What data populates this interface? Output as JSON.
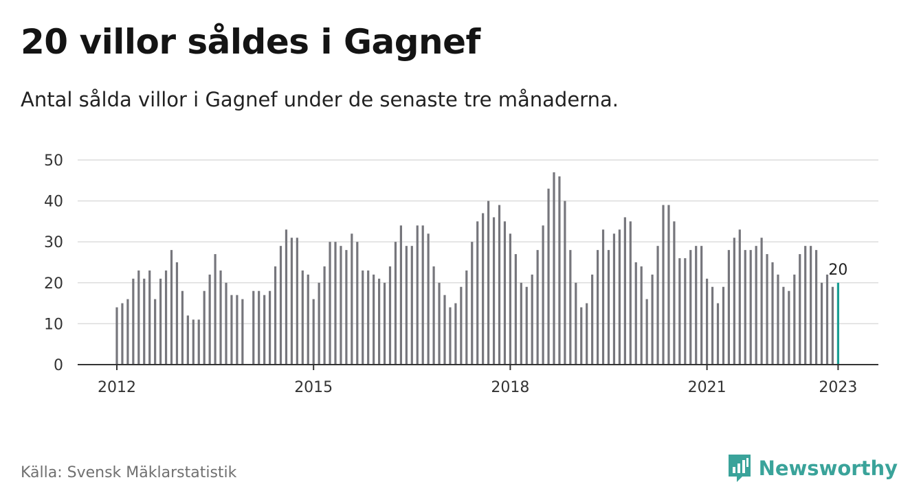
{
  "title": "20 villor såldes i Gagnef",
  "subtitle": "Antal sålda villor i Gagnef under de senaste tre månaderna.",
  "source": "Källa: Svensk Mäklarstatistik",
  "brand": "Newsworthy",
  "colors": {
    "bar": "#76767c",
    "highlight": "#1a9e94",
    "grid": "#dcdcdc",
    "axis": "#333333",
    "brand": "#3aa39a"
  },
  "chart_data": {
    "type": "bar",
    "title": "20 villor såldes i Gagnef",
    "subtitle": "Antal sålda villor i Gagnef under de senaste tre månaderna.",
    "xlabel": "",
    "ylabel": "",
    "ylim": [
      0,
      50
    ],
    "yticks": [
      0,
      10,
      20,
      30,
      40,
      50
    ],
    "xticks": [
      "2012",
      "2015",
      "2018",
      "2021",
      "2023"
    ],
    "grid": true,
    "highlight_label": "20",
    "start": "2012-01",
    "end": "2023-01",
    "values": [
      14,
      15,
      16,
      21,
      23,
      21,
      23,
      16,
      21,
      23,
      28,
      25,
      18,
      12,
      11,
      11,
      18,
      22,
      27,
      23,
      20,
      17,
      17,
      16,
      null,
      18,
      18,
      17,
      18,
      24,
      29,
      33,
      31,
      31,
      23,
      22,
      16,
      20,
      24,
      30,
      30,
      29,
      28,
      32,
      30,
      23,
      23,
      22,
      21,
      20,
      24,
      30,
      34,
      29,
      29,
      34,
      34,
      32,
      24,
      20,
      17,
      14,
      15,
      19,
      23,
      30,
      35,
      37,
      40,
      36,
      39,
      35,
      32,
      27,
      20,
      19,
      22,
      28,
      34,
      43,
      47,
      46,
      40,
      28,
      20,
      14,
      15,
      22,
      28,
      33,
      28,
      32,
      33,
      36,
      35,
      25,
      24,
      16,
      22,
      29,
      39,
      39,
      35,
      26,
      26,
      28,
      29,
      29,
      21,
      19,
      15,
      19,
      28,
      31,
      33,
      28,
      28,
      29,
      31,
      27,
      25,
      22,
      19,
      18,
      22,
      27,
      29,
      29,
      28,
      20,
      22,
      19,
      20
    ]
  }
}
